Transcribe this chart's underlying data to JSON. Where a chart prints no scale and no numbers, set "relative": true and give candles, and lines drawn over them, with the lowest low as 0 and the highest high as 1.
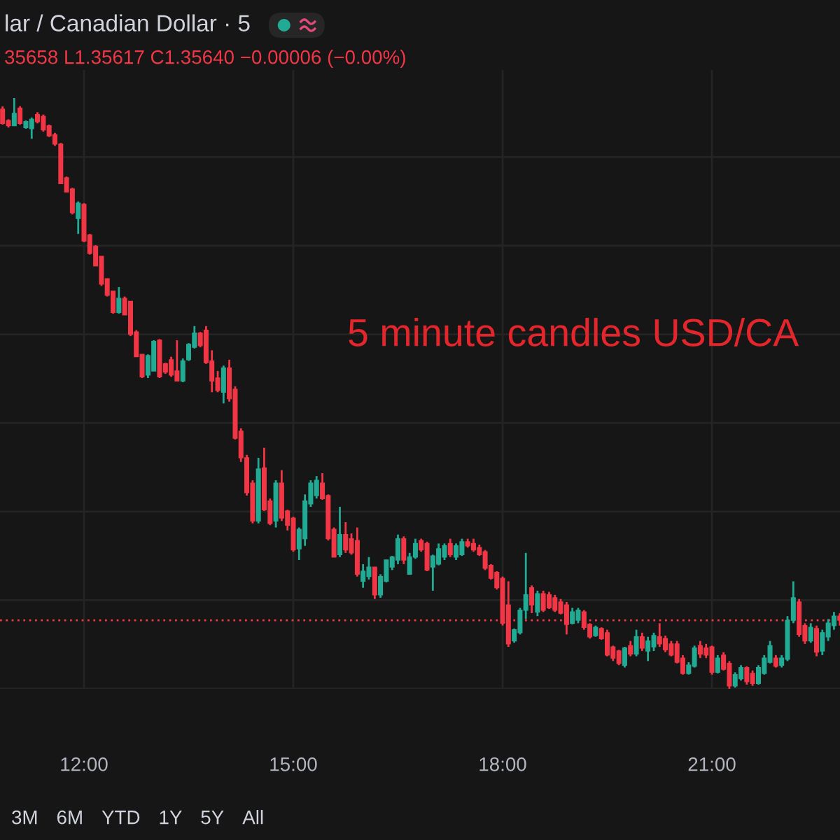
{
  "chart_data": {
    "type": "candlestick",
    "title": "lar / Canadian Dollar · 5",
    "subtitle": "35658 L1.35617 C1.35640 −0.00006 (−0.00%)",
    "annotations": [
      "5 minute candles USD/CA",
      "3M",
      "6M",
      "YTD",
      "1Y",
      "5Y",
      "All"
    ],
    "relative": true,
    "x": [
      10.833,
      10.917,
      11.0,
      11.083,
      11.167,
      11.25,
      11.333,
      11.417,
      11.5,
      11.583,
      11.667,
      11.75,
      11.833,
      11.917,
      12.0,
      12.083,
      12.167,
      12.25,
      12.333,
      12.417,
      12.5,
      12.583,
      12.667,
      12.75,
      12.833,
      12.917,
      13.0,
      13.083,
      13.167,
      13.25,
      13.333,
      13.417,
      13.5,
      13.583,
      13.667,
      13.75,
      13.833,
      13.917,
      14.0,
      14.083,
      14.167,
      14.25,
      14.333,
      14.417,
      14.5,
      14.583,
      14.667,
      14.75,
      14.833,
      14.917,
      15.0,
      15.083,
      15.167,
      15.25,
      15.333,
      15.417,
      15.5,
      15.583,
      15.667,
      15.75,
      15.833,
      15.917,
      16.0,
      16.083,
      16.167,
      16.25,
      16.333,
      16.417,
      16.5,
      16.583,
      16.667,
      16.75,
      16.833,
      16.917,
      17.0,
      17.083,
      17.167,
      17.25,
      17.333,
      17.417,
      17.5,
      17.583,
      17.667,
      17.75,
      17.833,
      17.917,
      18.0,
      18.083,
      18.167,
      18.25,
      18.333,
      18.417,
      18.5,
      18.583,
      18.667,
      18.75,
      18.833,
      18.917,
      19.0,
      19.083,
      19.167,
      19.25,
      19.333,
      19.417,
      19.5,
      19.583,
      19.667,
      19.75,
      19.833,
      19.917,
      20.0,
      20.083,
      20.167,
      20.25,
      20.333,
      20.417,
      20.5,
      20.583,
      20.667,
      20.75,
      20.833,
      20.917,
      21.0,
      21.083,
      21.167,
      21.25,
      21.333,
      21.417,
      21.5,
      21.583,
      21.667,
      21.75,
      21.833,
      21.917,
      22.0,
      22.083,
      22.167,
      22.25,
      22.333,
      22.417,
      22.5,
      22.583,
      22.667,
      22.75,
      22.833
    ],
    "ohlc": [
      [
        0.981,
        0.986,
        0.955,
        0.957
      ],
      [
        0.962,
        0.964,
        0.95,
        0.953
      ],
      [
        0.953,
        1.0,
        0.953,
        0.974
      ],
      [
        0.983,
        0.986,
        0.955,
        0.957
      ],
      [
        0.95,
        0.962,
        0.948,
        0.96
      ],
      [
        0.948,
        0.967,
        0.931,
        0.964
      ],
      [
        0.972,
        0.976,
        0.957,
        0.96
      ],
      [
        0.969,
        0.972,
        0.943,
        0.946
      ],
      [
        0.953,
        0.955,
        0.934,
        0.936
      ],
      [
        0.938,
        0.941,
        0.919,
        0.922
      ],
      [
        0.922,
        0.924,
        0.855,
        0.855
      ],
      [
        0.865,
        0.867,
        0.841,
        0.841
      ],
      [
        0.846,
        0.848,
        0.803,
        0.806
      ],
      [
        0.796,
        0.825,
        0.77,
        0.822
      ],
      [
        0.82,
        0.822,
        0.756,
        0.758
      ],
      [
        0.768,
        0.77,
        0.735,
        0.737
      ],
      [
        0.749,
        0.751,
        0.716,
        0.716
      ],
      [
        0.732,
        0.732,
        0.682,
        0.685
      ],
      [
        0.694,
        0.694,
        0.664,
        0.666
      ],
      [
        0.673,
        0.673,
        0.635,
        0.637
      ],
      [
        0.637,
        0.68,
        0.635,
        0.661
      ],
      [
        0.661,
        0.664,
        0.633,
        0.633
      ],
      [
        0.656,
        0.656,
        0.597,
        0.6
      ],
      [
        0.604,
        0.607,
        0.562,
        0.562
      ],
      [
        0.566,
        0.566,
        0.526,
        0.528
      ],
      [
        0.531,
        0.566,
        0.526,
        0.564
      ],
      [
        0.538,
        0.59,
        0.538,
        0.588
      ],
      [
        0.59,
        0.592,
        0.526,
        0.528
      ],
      [
        0.55,
        0.552,
        0.533,
        0.536
      ],
      [
        0.557,
        0.562,
        0.528,
        0.531
      ],
      [
        0.538,
        0.59,
        0.521,
        0.521
      ],
      [
        0.521,
        0.559,
        0.519,
        0.555
      ],
      [
        0.557,
        0.585,
        0.555,
        0.583
      ],
      [
        0.578,
        0.614,
        0.576,
        0.602
      ],
      [
        0.602,
        0.604,
        0.578,
        0.581
      ],
      [
        0.607,
        0.614,
        0.55,
        0.552
      ],
      [
        0.555,
        0.573,
        0.502,
        0.521
      ],
      [
        0.526,
        0.538,
        0.502,
        0.505
      ],
      [
        0.502,
        0.547,
        0.483,
        0.543
      ],
      [
        0.543,
        0.557,
        0.486,
        0.491
      ],
      [
        0.507,
        0.512,
        0.422,
        0.424
      ],
      [
        0.436,
        0.441,
        0.384,
        0.391
      ],
      [
        0.391,
        0.396,
        0.327,
        0.332
      ],
      [
        0.348,
        0.353,
        0.28,
        0.284
      ],
      [
        0.284,
        0.391,
        0.28,
        0.372
      ],
      [
        0.374,
        0.408,
        0.301,
        0.303
      ],
      [
        0.318,
        0.322,
        0.277,
        0.28
      ],
      [
        0.284,
        0.353,
        0.273,
        0.348
      ],
      [
        0.348,
        0.37,
        0.284,
        0.289
      ],
      [
        0.301,
        0.303,
        0.268,
        0.277
      ],
      [
        0.289,
        0.291,
        0.232,
        0.235
      ],
      [
        0.237,
        0.273,
        0.218,
        0.27
      ],
      [
        0.254,
        0.329,
        0.242,
        0.318
      ],
      [
        0.313,
        0.353,
        0.308,
        0.348
      ],
      [
        0.327,
        0.36,
        0.322,
        0.353
      ],
      [
        0.348,
        0.365,
        0.32,
        0.322
      ],
      [
        0.327,
        0.329,
        0.251,
        0.254
      ],
      [
        0.27,
        0.273,
        0.223,
        0.223
      ],
      [
        0.227,
        0.308,
        0.223,
        0.261
      ],
      [
        0.261,
        0.282,
        0.23,
        0.235
      ],
      [
        0.254,
        0.263,
        0.227,
        0.23
      ],
      [
        0.251,
        0.273,
        0.19,
        0.194
      ],
      [
        0.182,
        0.211,
        0.171,
        0.199
      ],
      [
        0.19,
        0.223,
        0.185,
        0.206
      ],
      [
        0.206,
        0.206,
        0.152,
        0.159
      ],
      [
        0.159,
        0.194,
        0.154,
        0.19
      ],
      [
        0.182,
        0.218,
        0.18,
        0.218
      ],
      [
        0.206,
        0.225,
        0.201,
        0.223
      ],
      [
        0.218,
        0.261,
        0.211,
        0.254
      ],
      [
        0.254,
        0.258,
        0.211,
        0.218
      ],
      [
        0.194,
        0.23,
        0.194,
        0.223
      ],
      [
        0.223,
        0.254,
        0.22,
        0.246
      ],
      [
        0.251,
        0.254,
        0.232,
        0.235
      ],
      [
        0.246,
        0.249,
        0.199,
        0.201
      ],
      [
        0.206,
        0.227,
        0.166,
        0.225
      ],
      [
        0.211,
        0.246,
        0.209,
        0.237
      ],
      [
        0.223,
        0.246,
        0.218,
        0.242
      ],
      [
        0.246,
        0.254,
        0.223,
        0.227
      ],
      [
        0.223,
        0.246,
        0.218,
        0.242
      ],
      [
        0.227,
        0.254,
        0.225,
        0.249
      ],
      [
        0.249,
        0.254,
        0.239,
        0.242
      ],
      [
        0.246,
        0.254,
        0.232,
        0.235
      ],
      [
        0.239,
        0.244,
        0.225,
        0.227
      ],
      [
        0.232,
        0.235,
        0.201,
        0.204
      ],
      [
        0.209,
        0.211,
        0.185,
        0.187
      ],
      [
        0.197,
        0.199,
        0.168,
        0.171
      ],
      [
        0.187,
        0.19,
        0.107,
        0.111
      ],
      [
        0.142,
        0.182,
        0.071,
        0.076
      ],
      [
        0.081,
        0.102,
        0.078,
        0.1
      ],
      [
        0.095,
        0.137,
        0.092,
        0.133
      ],
      [
        0.133,
        0.23,
        0.118,
        0.159
      ],
      [
        0.171,
        0.175,
        0.128,
        0.142
      ],
      [
        0.13,
        0.166,
        0.123,
        0.161
      ],
      [
        0.161,
        0.166,
        0.13,
        0.133
      ],
      [
        0.159,
        0.164,
        0.135,
        0.137
      ],
      [
        0.154,
        0.159,
        0.13,
        0.133
      ],
      [
        0.147,
        0.152,
        0.126,
        0.128
      ],
      [
        0.142,
        0.147,
        0.092,
        0.109
      ],
      [
        0.111,
        0.137,
        0.109,
        0.13
      ],
      [
        0.116,
        0.137,
        0.111,
        0.133
      ],
      [
        0.13,
        0.133,
        0.1,
        0.104
      ],
      [
        0.109,
        0.111,
        0.085,
        0.088
      ],
      [
        0.09,
        0.107,
        0.088,
        0.104
      ],
      [
        0.102,
        0.104,
        0.083,
        0.085
      ],
      [
        0.095,
        0.1,
        0.055,
        0.057
      ],
      [
        0.071,
        0.073,
        0.047,
        0.052
      ],
      [
        0.064,
        0.066,
        0.04,
        0.043
      ],
      [
        0.04,
        0.071,
        0.036,
        0.069
      ],
      [
        0.073,
        0.081,
        0.055,
        0.059
      ],
      [
        0.059,
        0.1,
        0.055,
        0.088
      ],
      [
        0.088,
        0.095,
        0.064,
        0.069
      ],
      [
        0.064,
        0.088,
        0.047,
        0.081
      ],
      [
        0.071,
        0.095,
        0.064,
        0.09
      ],
      [
        0.088,
        0.111,
        0.071,
        0.076
      ],
      [
        0.085,
        0.09,
        0.062,
        0.066
      ],
      [
        0.076,
        0.081,
        0.055,
        0.057
      ],
      [
        0.076,
        0.081,
        0.043,
        0.045
      ],
      [
        0.052,
        0.057,
        0.024,
        0.026
      ],
      [
        0.026,
        0.045,
        0.024,
        0.04
      ],
      [
        0.038,
        0.073,
        0.036,
        0.069
      ],
      [
        0.073,
        0.081,
        0.052,
        0.059
      ],
      [
        0.069,
        0.076,
        0.052,
        0.057
      ],
      [
        0.071,
        0.073,
        0.024,
        0.028
      ],
      [
        0.028,
        0.057,
        0.026,
        0.052
      ],
      [
        0.057,
        0.062,
        0.031,
        0.033
      ],
      [
        0.043,
        0.047,
        0.0,
        0.005
      ],
      [
        0.005,
        0.028,
        0.002,
        0.024
      ],
      [
        0.017,
        0.04,
        0.014,
        0.036
      ],
      [
        0.036,
        0.038,
        0.007,
        0.012
      ],
      [
        0.026,
        0.031,
        0.005,
        0.009
      ],
      [
        0.009,
        0.04,
        0.007,
        0.036
      ],
      [
        0.026,
        0.057,
        0.024,
        0.052
      ],
      [
        0.045,
        0.081,
        0.043,
        0.073
      ],
      [
        0.052,
        0.057,
        0.036,
        0.038
      ],
      [
        0.04,
        0.057,
        0.036,
        0.052
      ],
      [
        0.05,
        0.123,
        0.047,
        0.116
      ],
      [
        0.116,
        0.182,
        0.111,
        0.154
      ],
      [
        0.147,
        0.152,
        0.088,
        0.092
      ],
      [
        0.107,
        0.111,
        0.076,
        0.081
      ],
      [
        0.081,
        0.111,
        0.078,
        0.104
      ],
      [
        0.102,
        0.107,
        0.055,
        0.062
      ],
      [
        0.064,
        0.1,
        0.057,
        0.095
      ],
      [
        0.088,
        0.118,
        0.081,
        0.111
      ],
      [
        0.107,
        0.13,
        0.1,
        0.123
      ],
      [
        0.123,
        0.128,
        0.107,
        0.116
      ]
    ],
    "xlim": [
      10.796,
      22.836
    ],
    "xticks": [
      {
        "value": 12,
        "label": "12:00"
      },
      {
        "value": 15,
        "label": "15:00"
      },
      {
        "value": 18,
        "label": "18:00"
      },
      {
        "value": 21,
        "label": "21:00"
      }
    ],
    "tick_labels": "x",
    "grid": true,
    "ref_lines": [
      {
        "axis": "y",
        "value": 0.116,
        "color": "#f23645",
        "line_style": "dotted"
      }
    ]
  }
}
